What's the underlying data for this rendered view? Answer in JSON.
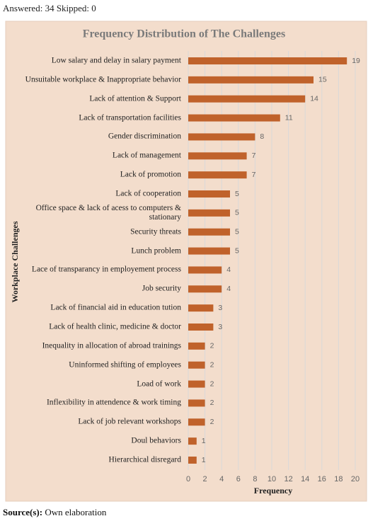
{
  "header": {
    "text": "Answered: 34 Skipped: 0"
  },
  "footer": {
    "label": "Source(s):",
    "text": "Own elaboration"
  },
  "chart_data": {
    "type": "barh",
    "title": "Frequency Distribution of The Challenges",
    "x_label": "Frequency",
    "y_label": "Workplace Challenges",
    "categories": [
      "Low salary and delay in salary payment",
      "Unsuitable workplace & Inappropriate behavior",
      "Lack of attention & Support",
      "Lack of transportation facilities",
      "Gender discrimination",
      "Lack of management",
      "Lack of promotion",
      "Lack of cooperation",
      "Office space & lack of acess to computers & stationary",
      "Security threats",
      "Lunch problem",
      "Lace of transparancy in employement process",
      "Job security",
      "Lack of financial aid in education tution",
      "Lack of health clinic, medicine & doctor",
      "Inequality in allocation of abroad trainings",
      "Uninformed shifting of employees",
      "Load of work",
      "Inflexibility in attendence & work timing",
      "Lack of job relevant workshops",
      "Doul behaviors",
      "Hierarchical disregard"
    ],
    "values": [
      19,
      15,
      14,
      11,
      8,
      7,
      7,
      5,
      5,
      5,
      5,
      4,
      4,
      3,
      3,
      2,
      2,
      2,
      2,
      2,
      1,
      1
    ],
    "color": "#c0622b",
    "xlim": [
      0,
      20
    ],
    "xticks": [
      0,
      2,
      4,
      6,
      8,
      10,
      12,
      14,
      16,
      18,
      20
    ],
    "grid": true
  }
}
